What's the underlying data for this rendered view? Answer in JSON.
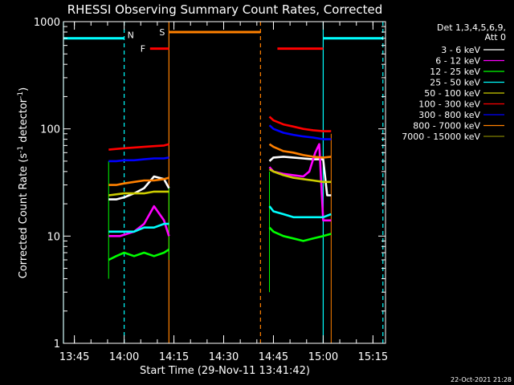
{
  "chart_data": {
    "type": "line",
    "title": "RHESSI Observing Summary Count Rates, Corrected",
    "xlabel": "Start Time (29-Nov-11 13:41:42)",
    "ylabel": "Corrected Count Rate (s⁻¹ detector⁻¹)",
    "ylabel_parts": {
      "main": "Corrected Count Rate (s",
      "sup1": "-1",
      "mid": " detector",
      "sup2": "-1",
      "end": ")"
    },
    "x_range": [
      13.695,
      15.313
    ],
    "x_ticks": [
      {
        "h": 13.75,
        "label": "13:45"
      },
      {
        "h": 14.0,
        "label": "14:00"
      },
      {
        "h": 14.25,
        "label": "14:15"
      },
      {
        "h": 14.5,
        "label": "14:30"
      },
      {
        "h": 14.75,
        "label": "14:45"
      },
      {
        "h": 15.0,
        "label": "15:00"
      },
      {
        "h": 15.25,
        "label": "15:15"
      }
    ],
    "ylim": [
      1,
      1000
    ],
    "yscale": "log",
    "y_ticks": [
      {
        "v": 1,
        "label": "1"
      },
      {
        "v": 10,
        "label": "10"
      },
      {
        "v": 100,
        "label": "100"
      },
      {
        "v": 1000,
        "label": "1000"
      }
    ],
    "legend": {
      "header": [
        "Det 1,3,4,5,6,9,",
        "Att 0"
      ],
      "placement": "right"
    },
    "series": [
      {
        "name": "3 - 6 keV",
        "color": "#ffffff",
        "segments": [
          {
            "x": [
              13.922,
              13.96,
              14.0,
              14.05,
              14.1,
              14.15,
              14.2,
              14.225
            ],
            "y": [
              22,
              22,
              23,
              25,
              28,
              36,
              34,
              28
            ]
          },
          {
            "x": [
              14.73,
              14.75,
              14.8,
              14.85,
              14.9,
              14.95,
              15.0,
              15.02,
              15.04
            ],
            "y": [
              50,
              54,
              55,
              54,
              53,
              52,
              52,
              24,
              24
            ]
          }
        ]
      },
      {
        "name": "6 - 12 keV",
        "color": "#ff00ff",
        "segments": [
          {
            "x": [
              13.922,
              13.98,
              14.05,
              14.1,
              14.15,
              14.2,
              14.225
            ],
            "y": [
              10,
              10,
              11,
              13,
              19,
              14,
              10
            ]
          },
          {
            "x": [
              14.73,
              14.75,
              14.8,
              14.85,
              14.9,
              14.93,
              14.96,
              14.98,
              15.0,
              15.02,
              15.04
            ],
            "y": [
              44,
              40,
              38,
              37,
              36,
              40,
              60,
              72,
              14,
              14,
              14
            ]
          }
        ]
      },
      {
        "name": "12 - 25 keV",
        "color": "#00ff00",
        "segments": [
          {
            "x": [
              13.922,
              13.96,
              14.0,
              14.05,
              14.1,
              14.15,
              14.2,
              14.225
            ],
            "y": [
              6,
              6.5,
              7,
              6.5,
              7,
              6.5,
              7,
              7.5
            ]
          },
          {
            "x": [
              14.73,
              14.75,
              14.8,
              14.85,
              14.9,
              14.95,
              15.0,
              15.04
            ],
            "y": [
              12,
              11,
              10,
              9.5,
              9,
              9.5,
              10,
              10.5
            ]
          }
        ]
      },
      {
        "name": "25 - 50 keV",
        "color": "#00ffff",
        "segments": [
          {
            "x": [
              13.922,
              14.0,
              14.05,
              14.1,
              14.15,
              14.2,
              14.225
            ],
            "y": [
              11,
              11,
              11,
              12,
              12,
              13,
              13
            ]
          },
          {
            "x": [
              14.73,
              14.75,
              14.8,
              14.85,
              14.9,
              14.95,
              15.0,
              15.04
            ],
            "y": [
              19,
              17,
              16,
              15,
              15,
              15,
              15,
              16
            ]
          }
        ]
      },
      {
        "name": "50 - 100 keV",
        "color": "#cccc00",
        "segments": [
          {
            "x": [
              13.922,
              14.0,
              14.05,
              14.1,
              14.15,
              14.2,
              14.225
            ],
            "y": [
              24,
              25,
              25,
              25,
              26,
              26,
              26
            ]
          },
          {
            "x": [
              14.73,
              14.75,
              14.8,
              14.85,
              14.9,
              14.95,
              15.0,
              15.04
            ],
            "y": [
              42,
              40,
              37,
              35,
              34,
              33,
              32,
              32
            ]
          }
        ]
      },
      {
        "name": "100 - 300 keV",
        "color": "#ff0000",
        "segments": [
          {
            "x": [
              13.922,
              13.96,
              14.0,
              14.05,
              14.1,
              14.15,
              14.2,
              14.225
            ],
            "y": [
              64,
              65,
              66,
              67,
              68,
              69,
              70,
              72
            ]
          },
          {
            "x": [
              14.73,
              14.75,
              14.8,
              14.85,
              14.9,
              14.95,
              15.0,
              15.04
            ],
            "y": [
              130,
              120,
              110,
              105,
              100,
              97,
              95,
              95
            ]
          }
        ]
      },
      {
        "name": "300 - 800 keV",
        "color": "#0000ff",
        "segments": [
          {
            "x": [
              13.922,
              13.96,
              14.0,
              14.05,
              14.1,
              14.15,
              14.2,
              14.225
            ],
            "y": [
              50,
              50,
              51,
              51,
              52,
              53,
              53,
              54
            ]
          },
          {
            "x": [
              14.73,
              14.75,
              14.8,
              14.85,
              14.9,
              14.95,
              15.0,
              15.04
            ],
            "y": [
              108,
              100,
              92,
              88,
              85,
              83,
              80,
              80
            ]
          }
        ]
      },
      {
        "name": "800 - 7000 keV",
        "color": "#ff8000",
        "segments": [
          {
            "x": [
              13.922,
              13.96,
              14.0,
              14.05,
              14.1,
              14.15,
              14.2,
              14.225
            ],
            "y": [
              30,
              30,
              31,
              32,
              33,
              33,
              34,
              35
            ]
          },
          {
            "x": [
              14.73,
              14.75,
              14.8,
              14.85,
              14.9,
              14.95,
              15.0,
              15.04
            ],
            "y": [
              72,
              68,
              62,
              60,
              57,
              55,
              54,
              55
            ]
          }
        ]
      },
      {
        "name": "7000 - 15000 keV",
        "color": "#808000",
        "segments": []
      }
    ],
    "drops": [
      {
        "x": 13.922,
        "y_from": 50,
        "y_to": 4,
        "color": "#00ff00"
      },
      {
        "x": 14.73,
        "y_from": 40,
        "y_to": 3,
        "color": "#00ff00"
      },
      {
        "x": 15.04,
        "y_from": 90,
        "y_to": 1,
        "color": "#ff8000"
      },
      {
        "x": 14.225,
        "y_from": 28,
        "y_to": 6,
        "color": "#00ff00"
      }
    ],
    "flag_bars": [
      {
        "label": "N",
        "color": "#00ffff",
        "y": 700,
        "segments": [
          [
            13.695,
            14.0
          ],
          [
            15.0,
            15.3
          ]
        ]
      },
      {
        "label": "F",
        "color": "#ff0000",
        "y": 560,
        "segments": [
          [
            14.13,
            14.225
          ],
          [
            14.77,
            15.0
          ]
        ]
      },
      {
        "label": "S",
        "color": "#ff8000",
        "y": 800,
        "segments": [
          [
            14.225,
            14.685
          ]
        ]
      }
    ],
    "vertical_lines": [
      {
        "x": 13.695,
        "color": "#00ffff",
        "style": "solid"
      },
      {
        "x": 14.0,
        "color": "#00ffff",
        "style": "dashed"
      },
      {
        "x": 14.225,
        "color": "#ff8000",
        "style": "solid"
      },
      {
        "x": 14.685,
        "color": "#ff8000",
        "style": "dashed"
      },
      {
        "x": 15.0,
        "color": "#00ffff",
        "style": "solid"
      },
      {
        "x": 15.3,
        "color": "#00ffff",
        "style": "dashed"
      }
    ],
    "footer_timestamp": "22-Oct-2021 21:28"
  }
}
